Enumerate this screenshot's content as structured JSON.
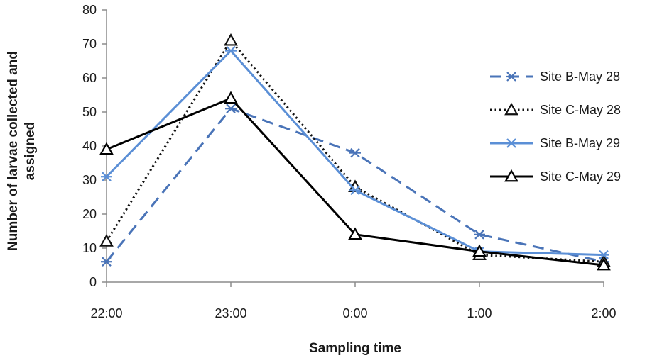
{
  "chart_data": {
    "type": "line",
    "title": "",
    "xlabel": "Sampling time",
    "ylabel_lines": [
      "Number of larvae collected and",
      "assigned"
    ],
    "categories": [
      "22:00",
      "23:00",
      "0:00",
      "1:00",
      "2:00"
    ],
    "ylim": [
      0,
      80
    ],
    "yticks": [
      0,
      10,
      20,
      30,
      40,
      50,
      60,
      70,
      80
    ],
    "grid": false,
    "legend_position": "right",
    "series": [
      {
        "name": "Site B-May 28",
        "values": [
          6,
          51,
          38,
          14,
          6
        ],
        "color": "#4a74b8",
        "line_style": "dashed",
        "marker": "asterisk"
      },
      {
        "name": "Site C-May 28",
        "values": [
          12,
          71,
          28,
          8,
          6
        ],
        "color": "#111111",
        "line_style": "dotted",
        "marker": "triangle"
      },
      {
        "name": "Site B-May 29",
        "values": [
          31,
          68,
          27,
          9,
          8
        ],
        "color": "#5b8fd6",
        "line_style": "solid",
        "marker": "asterisk"
      },
      {
        "name": "Site C-May 29",
        "values": [
          39,
          54,
          14,
          9,
          5
        ],
        "color": "#000000",
        "line_style": "solid",
        "marker": "triangle"
      }
    ]
  }
}
